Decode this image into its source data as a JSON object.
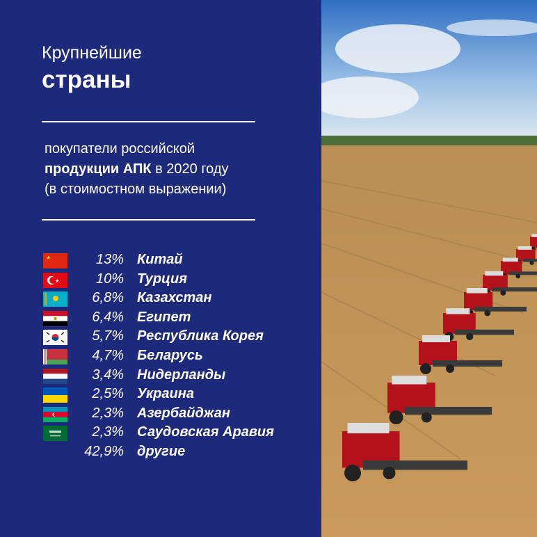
{
  "title": {
    "line1": "Крупнейшие",
    "line2": "страны"
  },
  "subtitle": {
    "line1": "покупатели российской",
    "line2_bold": "продукции АПК",
    "line2_rest": " в 2020 году",
    "line3": "(в стоимостном выражении)"
  },
  "background_color": "#1d2a7b",
  "countries": [
    {
      "pct": "13%",
      "name": "Китай",
      "flag": "china-flag"
    },
    {
      "pct": "10%",
      "name": "Турция",
      "flag": "turkey-flag"
    },
    {
      "pct": "6,8%",
      "name": "Казахстан",
      "flag": "kazakhstan-flag"
    },
    {
      "pct": "6,4%",
      "name": "Египет",
      "flag": "egypt-flag"
    },
    {
      "pct": "5,7%",
      "name": "Республика Корея",
      "flag": "korea-flag"
    },
    {
      "pct": "4,7%",
      "name": "Беларусь",
      "flag": "belarus-flag"
    },
    {
      "pct": "3,4%",
      "name": "Нидерланды",
      "flag": "netherlands-flag"
    },
    {
      "pct": "2,5%",
      "name": "Украина",
      "flag": "ukraine-flag"
    },
    {
      "pct": "2,3%",
      "name": "Азербайджан",
      "flag": "azerbaijan-flag"
    },
    {
      "pct": "2,3%",
      "name": "Саудовская Аравия",
      "flag": "saudi-arabia-flag"
    },
    {
      "pct": "42,9%",
      "name": "другие",
      "flag": ""
    }
  ]
}
